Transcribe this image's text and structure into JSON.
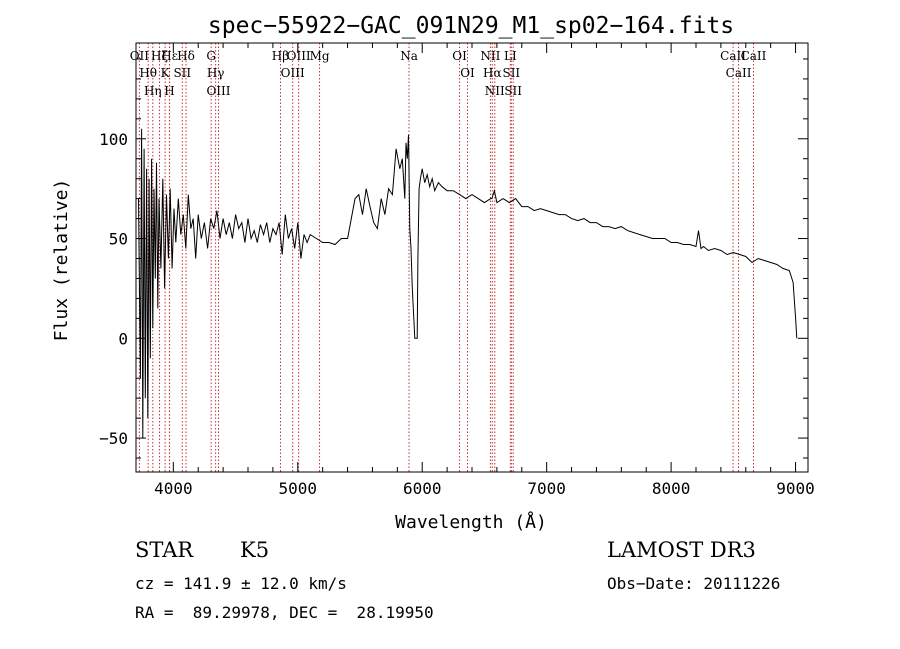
{
  "chart_data": {
    "type": "line",
    "title": "spec−55922−GAC_091N29_M1_sp02−164.fits",
    "xlabel": "Wavelength (Å)",
    "ylabel": "Flux (relative)",
    "xlim": [
      3700,
      9100
    ],
    "ylim": [
      -67,
      148
    ],
    "xticks": [
      4000,
      5000,
      6000,
      7000,
      8000,
      9000
    ],
    "xtick_labels": [
      "4000",
      "5000",
      "6000",
      "7000",
      "8000",
      "9000"
    ],
    "yticks": [
      -50,
      0,
      50,
      100
    ],
    "ytick_labels": [
      "−50",
      "0",
      "50",
      "100"
    ],
    "series": [
      {
        "name": "spectrum",
        "x": [
          3720,
          3735,
          3745,
          3755,
          3765,
          3775,
          3785,
          3795,
          3805,
          3815,
          3825,
          3835,
          3845,
          3855,
          3865,
          3875,
          3885,
          3900,
          3915,
          3930,
          3945,
          3960,
          3975,
          3990,
          4005,
          4020,
          4040,
          4060,
          4080,
          4100,
          4120,
          4140,
          4160,
          4180,
          4200,
          4225,
          4250,
          4275,
          4300,
          4325,
          4350,
          4375,
          4400,
          4425,
          4450,
          4475,
          4500,
          4525,
          4550,
          4575,
          4600,
          4625,
          4650,
          4675,
          4700,
          4725,
          4750,
          4775,
          4800,
          4825,
          4850,
          4875,
          4900,
          4925,
          4950,
          4975,
          5000,
          5025,
          5050,
          5075,
          5100,
          5150,
          5200,
          5250,
          5300,
          5350,
          5400,
          5430,
          5460,
          5490,
          5520,
          5550,
          5580,
          5610,
          5640,
          5670,
          5700,
          5730,
          5760,
          5790,
          5820,
          5840,
          5860,
          5870,
          5880,
          5890,
          5900,
          5910,
          5920,
          5940,
          5960,
          5965,
          5975,
          5985,
          6000,
          6020,
          6040,
          6060,
          6080,
          6100,
          6130,
          6160,
          6200,
          6250,
          6300,
          6350,
          6400,
          6450,
          6500,
          6550,
          6560,
          6580,
          6600,
          6650,
          6700,
          6750,
          6800,
          6850,
          6900,
          6950,
          7000,
          7050,
          7100,
          7150,
          7200,
          7250,
          7300,
          7350,
          7400,
          7450,
          7500,
          7550,
          7600,
          7650,
          7700,
          7750,
          7800,
          7850,
          7900,
          7950,
          8000,
          8050,
          8100,
          8150,
          8200,
          8220,
          8240,
          8260,
          8300,
          8350,
          8400,
          8450,
          8500,
          8550,
          8600,
          8650,
          8700,
          8750,
          8800,
          8850,
          8900,
          8950,
          8980,
          9000,
          9010
        ],
        "y": [
          70,
          -20,
          105,
          -50,
          95,
          -30,
          85,
          -40,
          80,
          -10,
          90,
          5,
          75,
          30,
          88,
          15,
          70,
          35,
          80,
          25,
          72,
          40,
          75,
          35,
          65,
          48,
          70,
          52,
          62,
          45,
          72,
          55,
          60,
          40,
          62,
          50,
          58,
          45,
          60,
          55,
          64,
          50,
          60,
          52,
          58,
          50,
          62,
          55,
          58,
          48,
          60,
          50,
          54,
          48,
          57,
          52,
          58,
          48,
          55,
          52,
          58,
          42,
          62,
          50,
          55,
          45,
          58,
          40,
          52,
          48,
          52,
          50,
          48,
          48,
          47,
          50,
          50,
          60,
          70,
          72,
          62,
          75,
          66,
          58,
          55,
          70,
          62,
          75,
          72,
          95,
          85,
          90,
          70,
          98,
          90,
          102,
          55,
          45,
          25,
          0,
          0,
          40,
          75,
          80,
          85,
          78,
          82,
          76,
          80,
          74,
          78,
          76,
          74,
          74,
          72,
          70,
          72,
          70,
          68,
          70,
          70,
          74,
          68,
          70,
          68,
          70,
          66,
          66,
          64,
          65,
          64,
          63,
          62,
          62,
          60,
          59,
          60,
          58,
          58,
          56,
          56,
          55,
          56,
          54,
          53,
          52,
          51,
          50,
          50,
          50,
          48,
          48,
          47,
          47,
          46,
          54,
          45,
          46,
          44,
          45,
          44,
          42,
          43,
          42,
          41,
          38,
          40,
          39,
          38,
          37,
          35,
          34,
          28,
          10,
          0
        ]
      }
    ],
    "lines": [
      {
        "label": "OⅠⅠ",
        "wavelength": 3727
      },
      {
        "label": "Hθ",
        "wavelength": 3798
      },
      {
        "label": "Hη",
        "wavelength": 3835
      },
      {
        "label": "Hζ",
        "wavelength": 3889
      },
      {
        "label": "K",
        "wavelength": 3934
      },
      {
        "label": "H",
        "wavelength": 3969
      },
      {
        "label": "Hε",
        "wavelength": 3970
      },
      {
        "label": "SⅠⅠ",
        "wavelength": 4072
      },
      {
        "label": "Hδ",
        "wavelength": 4102
      },
      {
        "label": "G",
        "wavelength": 4304
      },
      {
        "label": "Hγ",
        "wavelength": 4340
      },
      {
        "label": "OⅠⅠⅠ",
        "wavelength": 4363
      },
      {
        "label": "Hβ",
        "wavelength": 4861
      },
      {
        "label": "OⅠⅠⅠ",
        "wavelength": 4959
      },
      {
        "label": "OⅠⅠⅠ",
        "wavelength": 5007
      },
      {
        "label": "Mg",
        "wavelength": 5175
      },
      {
        "label": "Na",
        "wavelength": 5894
      },
      {
        "label": "OⅠ",
        "wavelength": 6300
      },
      {
        "label": "OⅠ",
        "wavelength": 6364
      },
      {
        "label": "NⅠⅠ",
        "wavelength": 6548
      },
      {
        "label": "Hα",
        "wavelength": 6563
      },
      {
        "label": "NⅠⅠ",
        "wavelength": 6583
      },
      {
        "label": "LⅠ",
        "wavelength": 6708
      },
      {
        "label": "SⅠⅠ",
        "wavelength": 6716
      },
      {
        "label": "SⅠⅠ",
        "wavelength": 6731
      },
      {
        "label": "CaⅠⅠ",
        "wavelength": 8498
      },
      {
        "label": "CaⅠⅠ",
        "wavelength": 8542
      },
      {
        "label": "CaⅠⅠ",
        "wavelength": 8662
      }
    ]
  },
  "info": {
    "class": "STAR",
    "subclass": "K5",
    "survey": "LAMOST DR3",
    "cz": "cz = 141.9 ± 12.0 km/s",
    "obs_date": "Obs−Date: 20111226",
    "coords": "RA =  89.29978, DEC =  28.19950"
  },
  "colors": {
    "axis": "#000000",
    "spectrum": "#000000",
    "line_marker": "#c83232"
  }
}
